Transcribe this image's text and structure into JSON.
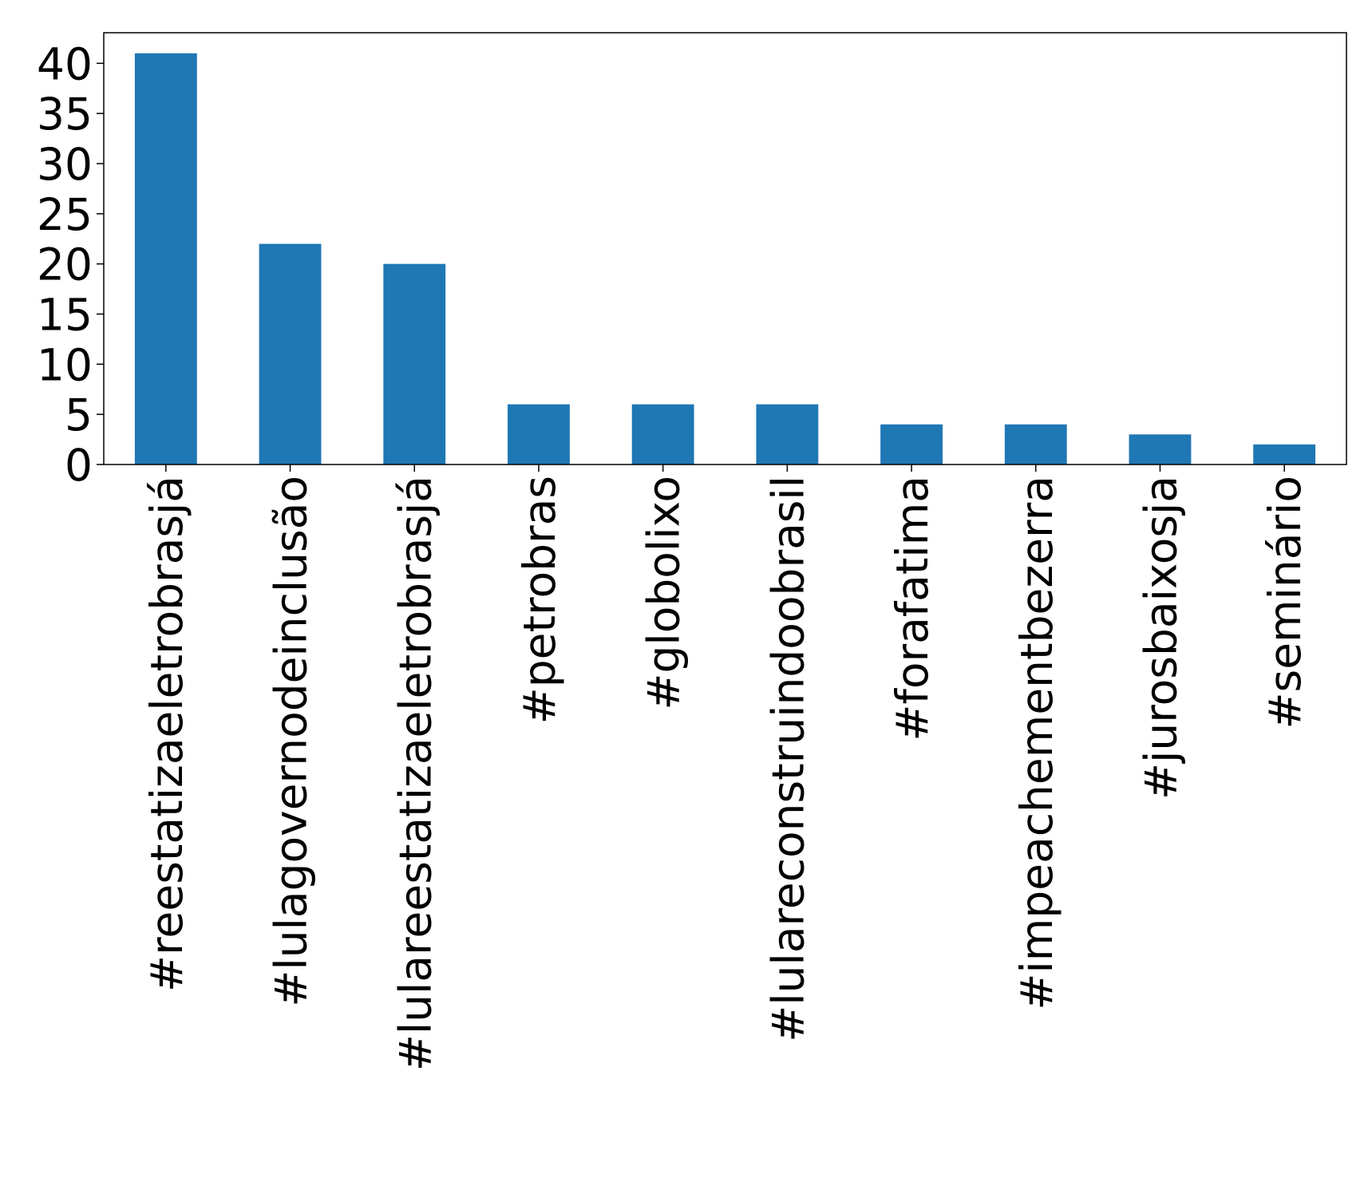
{
  "chart_data": {
    "type": "bar",
    "categories": [
      "#reestatizaeletrobrasjá",
      "#lulagovernodeinclusão",
      "#lulareestatizaeletrobrasjá",
      "#petrobras",
      "#globolixo",
      "#lulareconstruindoobrasil",
      "#forafatima",
      "#impeachementbezerra",
      "#jurosbaixosja",
      "#seminário"
    ],
    "values": [
      41,
      22,
      20,
      6,
      6,
      6,
      4,
      4,
      3,
      2
    ],
    "color": "#1f77b4",
    "ylim": [
      0,
      43.05
    ],
    "yticks": [
      0,
      5,
      10,
      15,
      20,
      25,
      30,
      35,
      40
    ],
    "grid": false
  }
}
